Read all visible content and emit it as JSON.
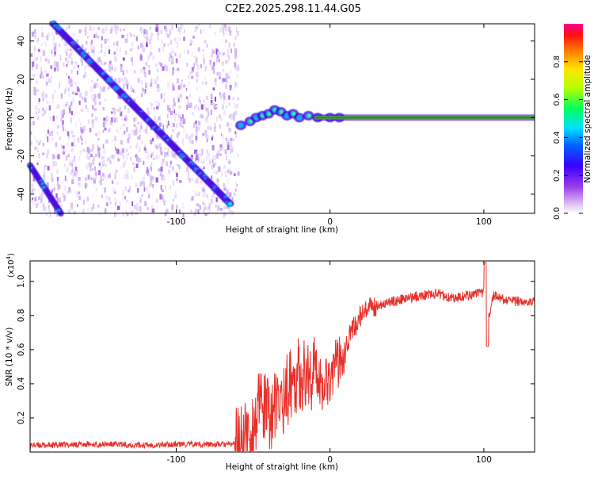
{
  "figure_title": "C2E2.2025.298.11.44.G05",
  "chart_data": [
    {
      "type": "heatmap",
      "title": "C2E2.2025.298.11.44.G05",
      "xlabel": "Height of straight line (km)",
      "ylabel": "Frequency (Hz)",
      "xlim": [
        -195,
        133
      ],
      "ylim": [
        -50,
        49
      ],
      "xticks": [
        -100,
        0,
        100
      ],
      "xtick_labels": [
        "-100",
        "0",
        "100"
      ],
      "yticks": [
        -40,
        -20,
        0,
        20,
        40
      ],
      "ytick_labels": [
        "-40",
        "-20",
        "0",
        "20",
        "40"
      ],
      "colorbar": {
        "label": "Normalized spectral amplitude",
        "range": [
          0,
          1
        ],
        "ticks": [
          0.0,
          0.2,
          0.4,
          0.6,
          0.8
        ],
        "tick_labels": [
          "0.0",
          "0.2",
          "0.4",
          "0.6",
          "0.8"
        ]
      },
      "features": {
        "noise_region_x": [
          -195,
          -60
        ],
        "diagonal_track": {
          "x_start": -180,
          "freq_start": 49,
          "x_end": -65,
          "freq_end": -45
        },
        "lower_track": {
          "x_start": -195,
          "freq_start": -25,
          "x_end": -175,
          "freq_end": -50
        },
        "signal_onset_x": -60,
        "carrier_freq": 0,
        "carrier_x": [
          -10,
          133
        ]
      }
    },
    {
      "type": "line",
      "xlabel": "Height of straight line (km)",
      "ylabel": "SNR (10 * v/v)",
      "y_multiplier": "(x10",
      "y_multiplier_exp": "4",
      "xlim": [
        -195,
        133
      ],
      "ylim": [
        0,
        1.12
      ],
      "xticks": [
        -100,
        0,
        100
      ],
      "xtick_labels": [
        "-100",
        "0",
        "100"
      ],
      "yticks": [
        0.2,
        0.4,
        0.6,
        0.8,
        1.0
      ],
      "ytick_labels": [
        "0.2",
        "0.4",
        "0.6",
        "0.8",
        "1.0"
      ],
      "series": [
        {
          "name": "SNR",
          "color": "#e8302a",
          "x": [
            -195,
            -180,
            -160,
            -140,
            -120,
            -100,
            -80,
            -65,
            -58,
            -50,
            -45,
            -40,
            -35,
            -30,
            -25,
            -20,
            -15,
            -10,
            -5,
            0,
            5,
            10,
            15,
            20,
            30,
            40,
            50,
            60,
            70,
            80,
            90,
            100,
            103,
            106,
            110,
            120,
            133
          ],
          "values": [
            0.04,
            0.04,
            0.045,
            0.045,
            0.04,
            0.045,
            0.045,
            0.045,
            0.06,
            0.14,
            0.28,
            0.22,
            0.26,
            0.32,
            0.42,
            0.46,
            0.44,
            0.48,
            0.4,
            0.45,
            0.52,
            0.63,
            0.72,
            0.8,
            0.86,
            0.88,
            0.9,
            0.92,
            0.93,
            0.9,
            0.92,
            0.93,
            0.78,
            0.92,
            0.9,
            0.88,
            0.89
          ]
        }
      ]
    }
  ]
}
